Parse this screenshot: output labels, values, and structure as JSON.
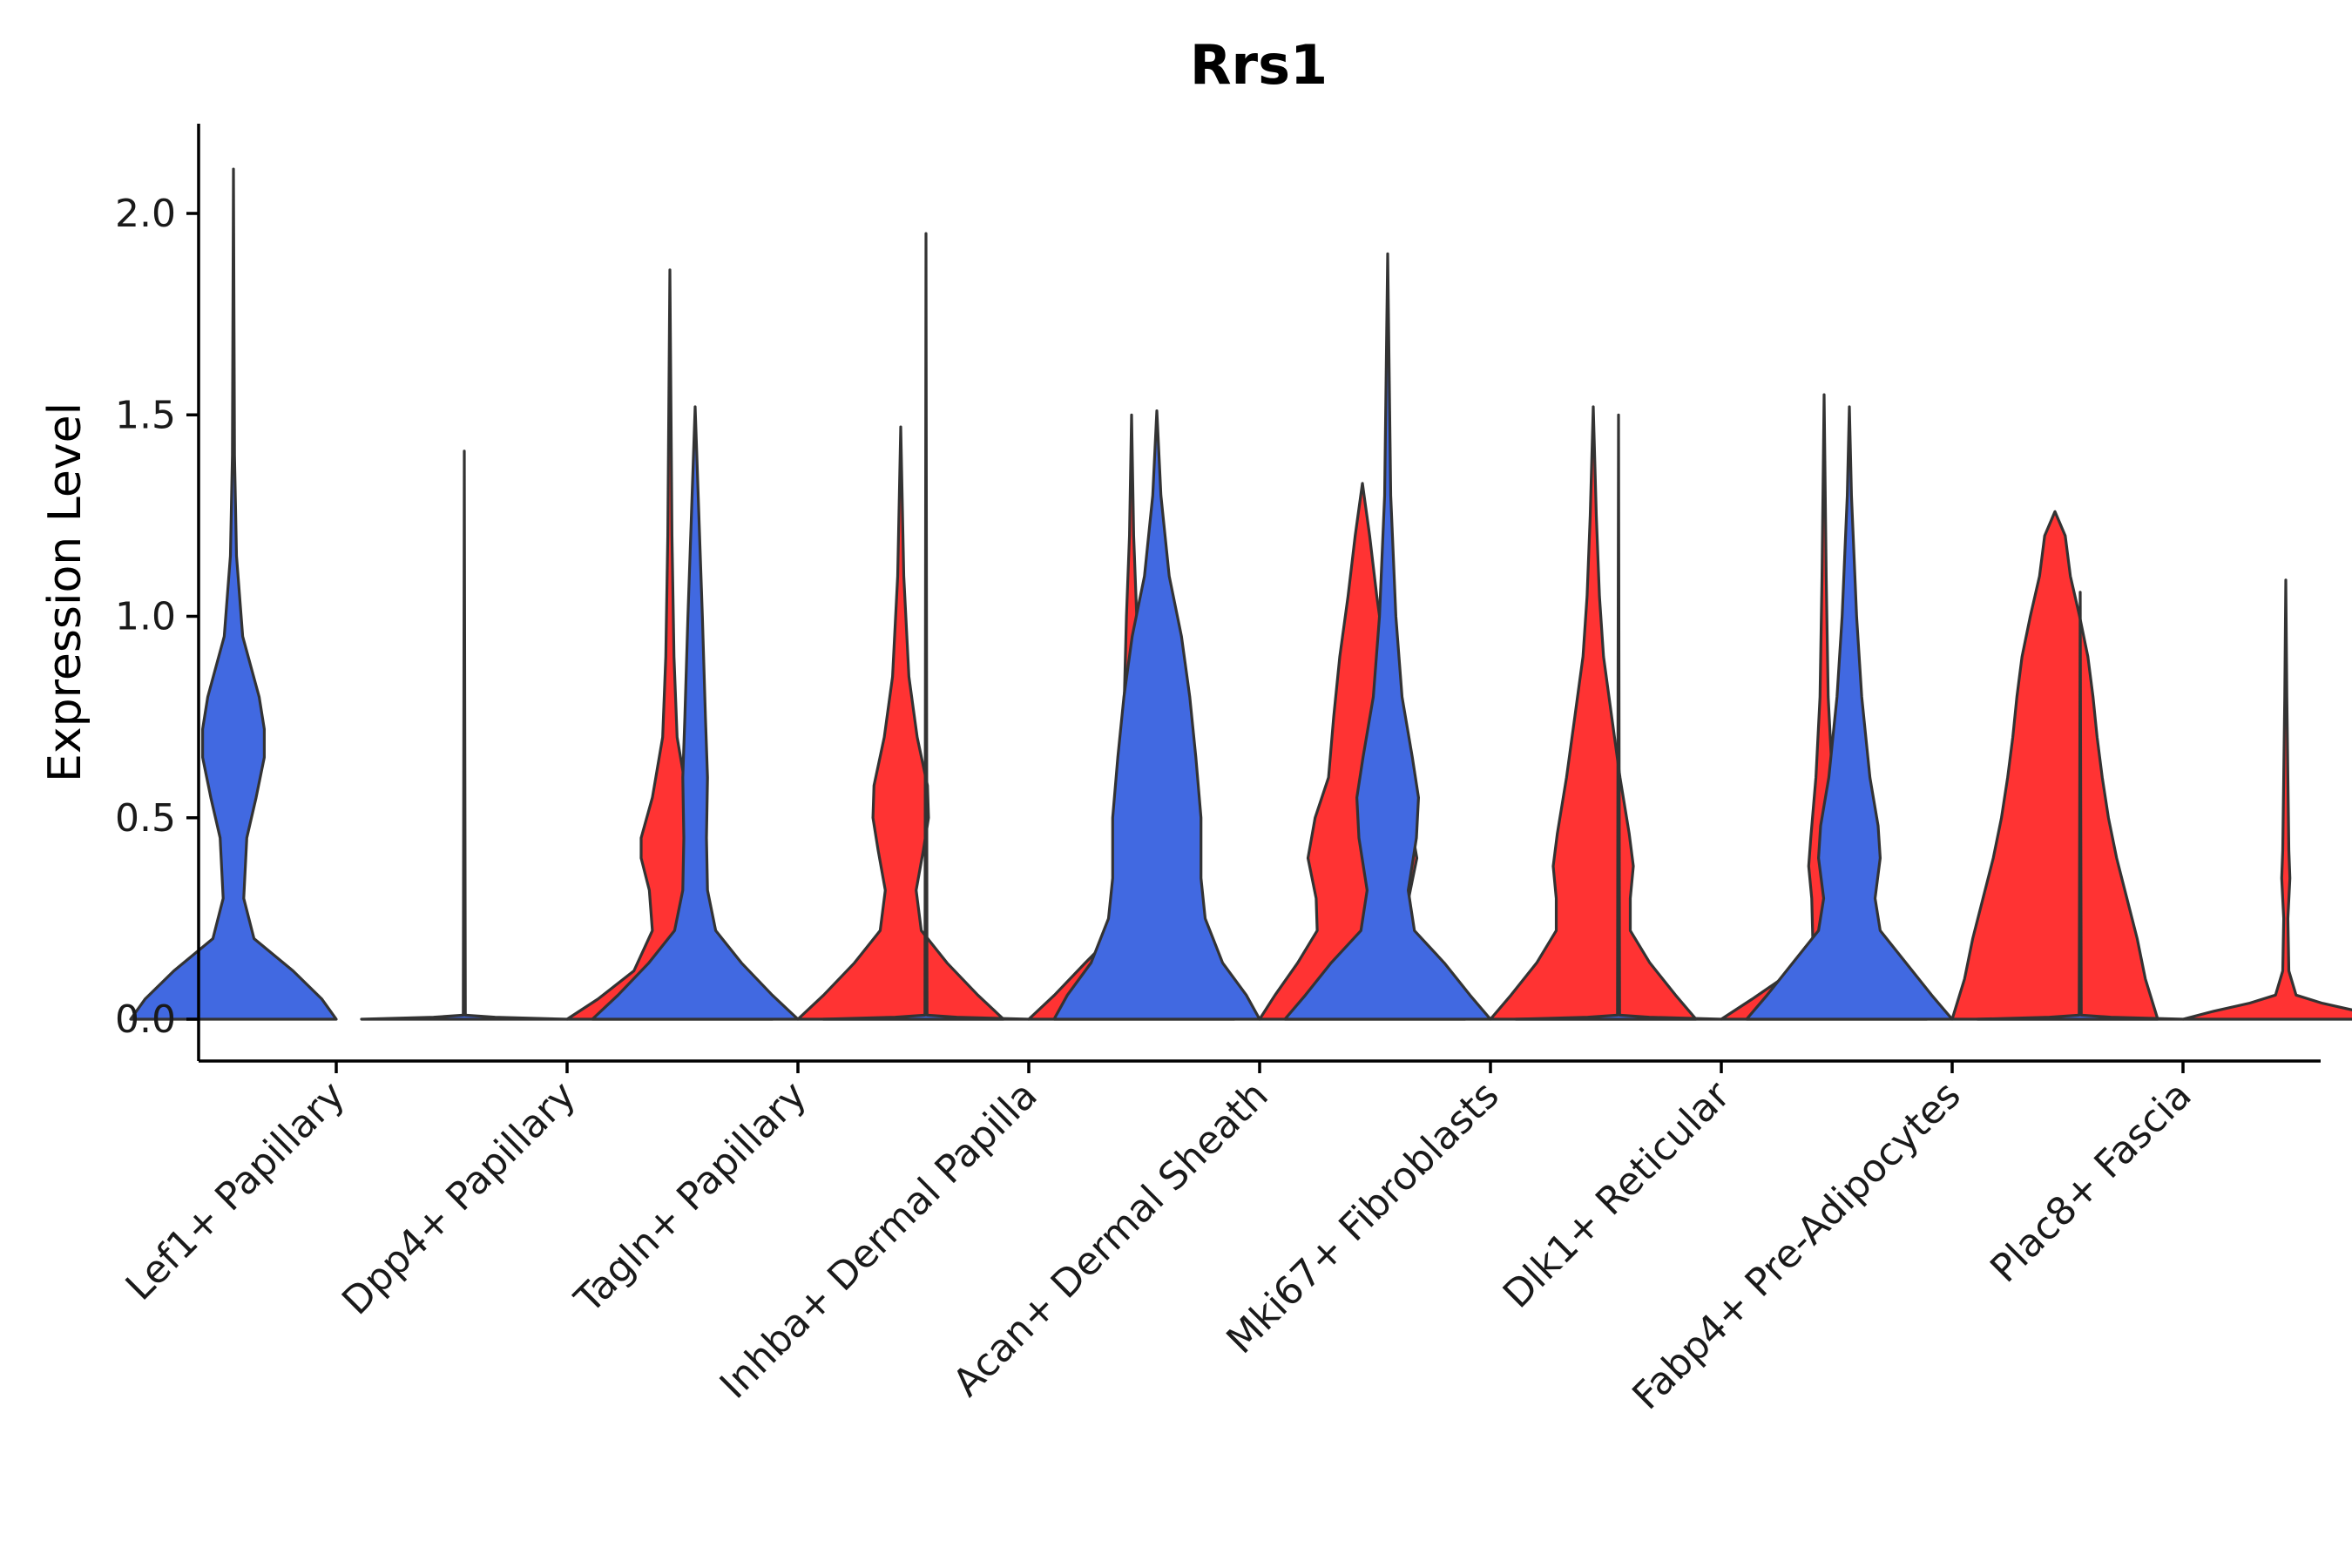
{
  "chart_data": {
    "type": "violin",
    "title": "Rrs1",
    "xlabel": "",
    "ylabel": "Expression Level",
    "ylim": [
      -0.1,
      2.2
    ],
    "yticks": [
      0.0,
      0.5,
      1.0,
      1.5,
      2.0
    ],
    "ytick_labels": [
      "0.0",
      "0.5",
      "1.0",
      "1.5",
      "2.0"
    ],
    "categories": [
      "Lef1+ Papillary",
      "Dpp4+ Papillary",
      "Tagln+ Papillary",
      "Inhba+ Dermal Papilla",
      "Acan+ Dermal Sheath",
      "Mki67+ Fibroblasts",
      "Dlk1+ Reticular",
      "Fabp4+ Pre-Adipocytes",
      "Plac8+ Fascia"
    ],
    "colors": {
      "blue": "#4169E1",
      "red": "#FF3333"
    },
    "violins": [
      {
        "category": "Lef1+ Papillary",
        "group": "blue",
        "max": 2.11,
        "profile": [
          [
            0,
            1
          ],
          [
            0.05,
            0.86
          ],
          [
            0.12,
            0.58
          ],
          [
            0.2,
            0.2
          ],
          [
            0.3,
            0.1
          ],
          [
            0.45,
            0.13
          ],
          [
            0.55,
            0.22
          ],
          [
            0.65,
            0.3
          ],
          [
            0.72,
            0.3
          ],
          [
            0.8,
            0.25
          ],
          [
            0.95,
            0.09
          ],
          [
            1.15,
            0.03
          ],
          [
            1.4,
            0.01
          ],
          [
            2.11,
            0
          ]
        ]
      },
      {
        "category": "Dpp4+ Papillary",
        "group": "blue",
        "max": 1.41,
        "profile": [
          [
            0,
            1
          ],
          [
            0.005,
            0.3
          ],
          [
            0.01,
            0.01
          ],
          [
            1.41,
            0
          ]
        ]
      },
      {
        "category": "Dpp4+ Papillary",
        "group": "red",
        "max": 1.86,
        "profile": [
          [
            0,
            1
          ],
          [
            0.05,
            0.7
          ],
          [
            0.12,
            0.35
          ],
          [
            0.22,
            0.17
          ],
          [
            0.32,
            0.2
          ],
          [
            0.4,
            0.28
          ],
          [
            0.45,
            0.28
          ],
          [
            0.55,
            0.17
          ],
          [
            0.7,
            0.07
          ],
          [
            0.9,
            0.04
          ],
          [
            1.2,
            0.02
          ],
          [
            1.86,
            0
          ]
        ]
      },
      {
        "category": "Tagln+ Papillary",
        "group": "blue",
        "max": 1.52,
        "profile": [
          [
            0,
            1
          ],
          [
            0.06,
            0.75
          ],
          [
            0.14,
            0.45
          ],
          [
            0.22,
            0.2
          ],
          [
            0.32,
            0.12
          ],
          [
            0.45,
            0.11
          ],
          [
            0.6,
            0.12
          ],
          [
            0.75,
            0.1
          ],
          [
            1.0,
            0.07
          ],
          [
            1.3,
            0.03
          ],
          [
            1.52,
            0
          ]
        ]
      },
      {
        "category": "Tagln+ Papillary",
        "group": "red",
        "max": 1.47,
        "profile": [
          [
            0,
            1
          ],
          [
            0.06,
            0.75
          ],
          [
            0.14,
            0.45
          ],
          [
            0.22,
            0.2
          ],
          [
            0.32,
            0.15
          ],
          [
            0.42,
            0.22
          ],
          [
            0.5,
            0.27
          ],
          [
            0.58,
            0.26
          ],
          [
            0.7,
            0.16
          ],
          [
            0.85,
            0.08
          ],
          [
            1.1,
            0.03
          ],
          [
            1.47,
            0
          ]
        ]
      },
      {
        "category": "Inhba+ Dermal Papilla",
        "group": "blue",
        "max": 1.95,
        "profile": [
          [
            0,
            1
          ],
          [
            0.005,
            0.3
          ],
          [
            0.01,
            0.01
          ],
          [
            1.95,
            0
          ]
        ]
      },
      {
        "category": "Inhba+ Dermal Papilla",
        "group": "red",
        "max": 1.5,
        "profile": [
          [
            0,
            1
          ],
          [
            0.06,
            0.75
          ],
          [
            0.14,
            0.45
          ],
          [
            0.22,
            0.14
          ],
          [
            0.3,
            0.08
          ],
          [
            0.5,
            0.07
          ],
          [
            0.8,
            0.07
          ],
          [
            1.0,
            0.05
          ],
          [
            1.2,
            0.02
          ],
          [
            1.5,
            0
          ]
        ]
      },
      {
        "category": "Acan+ Dermal Sheath",
        "group": "blue",
        "max": 1.51,
        "profile": [
          [
            0,
            1
          ],
          [
            0.06,
            0.87
          ],
          [
            0.14,
            0.64
          ],
          [
            0.25,
            0.47
          ],
          [
            0.35,
            0.43
          ],
          [
            0.5,
            0.43
          ],
          [
            0.65,
            0.38
          ],
          [
            0.8,
            0.32
          ],
          [
            0.95,
            0.24
          ],
          [
            1.1,
            0.12
          ],
          [
            1.3,
            0.04
          ],
          [
            1.51,
            0
          ]
        ]
      },
      {
        "category": "Acan+ Dermal Sheath",
        "group": "red",
        "max": 1.33,
        "profile": [
          [
            0,
            1
          ],
          [
            0.06,
            0.85
          ],
          [
            0.14,
            0.63
          ],
          [
            0.22,
            0.44
          ],
          [
            0.3,
            0.45
          ],
          [
            0.4,
            0.53
          ],
          [
            0.5,
            0.46
          ],
          [
            0.6,
            0.33
          ],
          [
            0.75,
            0.28
          ],
          [
            0.9,
            0.22
          ],
          [
            1.05,
            0.14
          ],
          [
            1.2,
            0.07
          ],
          [
            1.33,
            0
          ]
        ]
      },
      {
        "category": "Mki67+ Fibroblasts",
        "group": "blue",
        "max": 1.9,
        "profile": [
          [
            0,
            1
          ],
          [
            0.06,
            0.8
          ],
          [
            0.14,
            0.55
          ],
          [
            0.22,
            0.26
          ],
          [
            0.32,
            0.2
          ],
          [
            0.45,
            0.28
          ],
          [
            0.55,
            0.3
          ],
          [
            0.65,
            0.24
          ],
          [
            0.8,
            0.14
          ],
          [
            1.0,
            0.08
          ],
          [
            1.3,
            0.03
          ],
          [
            1.9,
            0
          ]
        ]
      },
      {
        "category": "Mki67+ Fibroblasts",
        "group": "red",
        "max": 1.52,
        "profile": [
          [
            0,
            1
          ],
          [
            0.06,
            0.8
          ],
          [
            0.14,
            0.55
          ],
          [
            0.22,
            0.36
          ],
          [
            0.3,
            0.36
          ],
          [
            0.38,
            0.39
          ],
          [
            0.46,
            0.35
          ],
          [
            0.6,
            0.26
          ],
          [
            0.75,
            0.18
          ],
          [
            0.9,
            0.1
          ],
          [
            1.05,
            0.06
          ],
          [
            1.25,
            0.03
          ],
          [
            1.52,
            0
          ]
        ]
      },
      {
        "category": "Dlk1+ Reticular",
        "group": "blue",
        "max": 1.5,
        "profile": [
          [
            0,
            1
          ],
          [
            0.005,
            0.3
          ],
          [
            0.01,
            0.01
          ],
          [
            1.5,
            0
          ]
        ]
      },
      {
        "category": "Dlk1+ Reticular",
        "group": "red",
        "max": 1.55,
        "profile": [
          [
            0,
            1
          ],
          [
            0.05,
            0.7
          ],
          [
            0.12,
            0.3
          ],
          [
            0.2,
            0.11
          ],
          [
            0.3,
            0.12
          ],
          [
            0.38,
            0.15
          ],
          [
            0.45,
            0.13
          ],
          [
            0.6,
            0.08
          ],
          [
            0.8,
            0.04
          ],
          [
            1.1,
            0.02
          ],
          [
            1.55,
            0
          ]
        ]
      },
      {
        "category": "Fabp4+ Pre-Adipocytes",
        "group": "blue",
        "max": 1.52,
        "profile": [
          [
            0,
            1
          ],
          [
            0.06,
            0.8
          ],
          [
            0.14,
            0.55
          ],
          [
            0.22,
            0.3
          ],
          [
            0.3,
            0.25
          ],
          [
            0.4,
            0.3
          ],
          [
            0.48,
            0.28
          ],
          [
            0.6,
            0.2
          ],
          [
            0.8,
            0.12
          ],
          [
            1.0,
            0.07
          ],
          [
            1.3,
            0.02
          ],
          [
            1.52,
            0
          ]
        ]
      },
      {
        "category": "Fabp4+ Pre-Adipocytes",
        "group": "red",
        "max": 1.26,
        "profile": [
          [
            0,
            1
          ],
          [
            0.1,
            0.88
          ],
          [
            0.2,
            0.8
          ],
          [
            0.3,
            0.7
          ],
          [
            0.4,
            0.6
          ],
          [
            0.5,
            0.52
          ],
          [
            0.6,
            0.46
          ],
          [
            0.7,
            0.41
          ],
          [
            0.8,
            0.37
          ],
          [
            0.9,
            0.32
          ],
          [
            1.0,
            0.24
          ],
          [
            1.1,
            0.15
          ],
          [
            1.2,
            0.1
          ],
          [
            1.26,
            0
          ]
        ]
      },
      {
        "category": "Plac8+ Fascia",
        "group": "blue",
        "max": 1.06,
        "profile": [
          [
            0,
            1
          ],
          [
            0.005,
            0.3
          ],
          [
            0.01,
            0.01
          ],
          [
            1.06,
            0
          ]
        ]
      },
      {
        "category": "Plac8+ Fascia",
        "group": "red",
        "max": 1.09,
        "profile": [
          [
            0,
            1
          ],
          [
            0.02,
            0.7
          ],
          [
            0.04,
            0.35
          ],
          [
            0.06,
            0.1
          ],
          [
            0.12,
            0.03
          ],
          [
            0.25,
            0.02
          ],
          [
            0.35,
            0.04
          ],
          [
            0.42,
            0.03
          ],
          [
            0.6,
            0.02
          ],
          [
            0.8,
            0.01
          ],
          [
            1.09,
            0
          ]
        ]
      }
    ]
  }
}
